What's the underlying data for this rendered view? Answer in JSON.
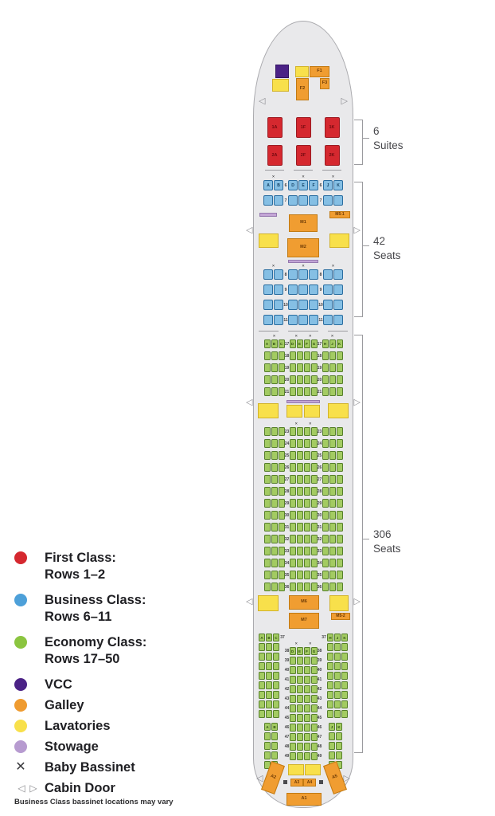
{
  "colors": {
    "first": "#d5282f",
    "first_border": "#9c1b22",
    "business": "#85bfe4",
    "business_border": "#2a6da0",
    "economy": "#a3cb62",
    "economy_border": "#567f2b",
    "vcc": "#4b2286",
    "galley": "#f09d31",
    "galley_border": "#c27a12",
    "lavatory": "#f8e04b",
    "lavatory_border": "#d2b32a",
    "stowage": "#c3a5d6",
    "stowage_border": "#9579ae",
    "fuselage": "#e9e9eb",
    "fuselage_border": "#aaaaae",
    "legend_first": "#d5282f",
    "legend_business": "#4da0d9",
    "legend_economy": "#8bc540",
    "legend_vcc": "#4b2286",
    "legend_galley": "#ef9b30",
    "legend_lavatory": "#f8e04b",
    "legend_stowage": "#b79bd0"
  },
  "icons": {
    "door_left": "◁",
    "door_right": "▷",
    "bassinet": "✕"
  },
  "annotations": [
    {
      "value": "6",
      "unit": "Suites"
    },
    {
      "value": "42",
      "unit": "Seats"
    },
    {
      "value": "306",
      "unit": "Seats"
    }
  ],
  "legend": {
    "items": [
      {
        "type": "dot",
        "color_key": "legend_first",
        "line1": "First Class:",
        "line2": "Rows 1–2"
      },
      {
        "type": "dot",
        "color_key": "legend_business",
        "line1": "Business Class:",
        "line2": "Rows 6–11"
      },
      {
        "type": "dot",
        "color_key": "legend_economy",
        "line1": "Economy Class:",
        "line2": "Rows 17–50"
      },
      {
        "type": "dot",
        "color_key": "legend_vcc",
        "line1": "VCC"
      },
      {
        "type": "dot",
        "color_key": "legend_galley",
        "line1": "Galley"
      },
      {
        "type": "dot",
        "color_key": "legend_lavatory",
        "line1": "Lavatories"
      },
      {
        "type": "dot",
        "color_key": "legend_stowage",
        "line1": "Stowage"
      },
      {
        "type": "bassinet",
        "line1": "Baby Bassinet"
      },
      {
        "type": "door",
        "line1": "Cabin Door"
      }
    ],
    "footnote": "Business Class bassinet locations may vary"
  },
  "facilities": {
    "f1": "F1",
    "f2": "F2",
    "f3": "F3",
    "m1": "M1",
    "m2": "M2",
    "m5_1": "M5-1",
    "m6": "M6",
    "m7": "M7",
    "m5_2": "M5-2",
    "a1": "A1",
    "a2": "A2",
    "a3": "A3",
    "a4": "A4",
    "a5": "A5"
  },
  "seatmap": {
    "first": {
      "rows": [
        {
          "number": "1",
          "seats": [
            "1A",
            "1F",
            "1K"
          ]
        },
        {
          "number": "2",
          "seats": [
            "2A",
            "2F",
            "2K"
          ]
        }
      ]
    },
    "business": {
      "letters": [
        [
          "A",
          "B"
        ],
        [
          "D",
          "E",
          "F"
        ],
        [
          "J",
          "K"
        ]
      ],
      "front_rows": [
        "6",
        "7"
      ],
      "rear_rows": [
        "8",
        "9",
        "10",
        "11"
      ]
    },
    "economy_forward": {
      "letters": [
        [
          "A",
          "B",
          "C"
        ],
        [
          "D",
          "E",
          "F",
          "G"
        ],
        [
          "H",
          "J",
          "K"
        ]
      ],
      "rows": [
        "17",
        "18",
        "19",
        "20",
        "21"
      ]
    },
    "economy_mid": {
      "rows": [
        "23",
        "24",
        "25",
        "26",
        "27",
        "28",
        "29",
        "30",
        "31",
        "32",
        "33",
        "34",
        "35",
        "36"
      ]
    },
    "economy_aft": {
      "side_letters_wide_left": [
        "A",
        "B",
        "C"
      ],
      "side_letters_wide_right": [
        "H",
        "J",
        "K"
      ],
      "side_letters_narrow_left": [
        "A",
        "B"
      ],
      "side_letters_narrow_right": [
        "J",
        "K"
      ],
      "side_wide_first_row": "37",
      "center_letters": [
        "D",
        "E",
        "F",
        "G"
      ],
      "center_rows": [
        "38",
        "39",
        "40",
        "41",
        "42",
        "43",
        "44",
        "45",
        "46",
        "47",
        "48",
        "49"
      ]
    }
  }
}
